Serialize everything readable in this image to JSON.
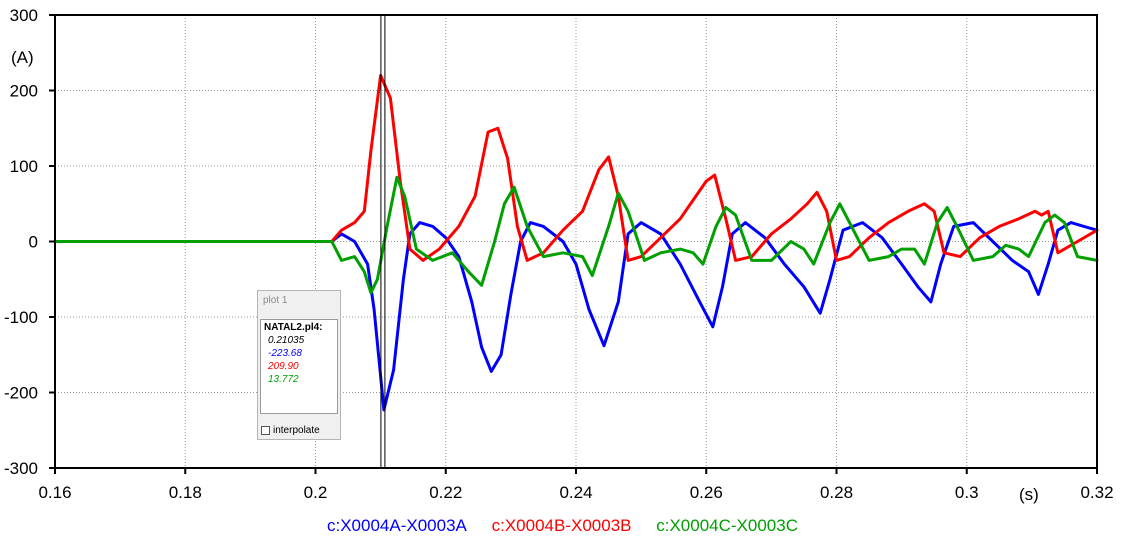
{
  "chart_data": {
    "type": "line",
    "title": "",
    "xlabel": "(s)",
    "ylabel": "(A)",
    "xlim": [
      0.16,
      0.32
    ],
    "ylim": [
      -300,
      300
    ],
    "xticks": [
      0.16,
      0.18,
      0.2,
      0.22,
      0.24,
      0.26,
      0.28,
      0.3,
      0.32
    ],
    "xtick_labels": [
      "0.16",
      "0.18",
      "0.2",
      "0.22",
      "0.24",
      "0.26",
      "0.28",
      "0.3",
      "0.32"
    ],
    "yticks": [
      300,
      200,
      100,
      0,
      -100,
      -200,
      -300
    ],
    "ytick_labels": [
      "300",
      "200",
      "100",
      "0",
      "-100",
      "-200",
      "-300"
    ],
    "grid": true,
    "legend_position": "bottom",
    "cursor_x": 0.21035,
    "series": [
      {
        "name": "c:X0004A-X0003A",
        "color": "#0000ff",
        "x": [
          0.16,
          0.2025,
          0.204,
          0.206,
          0.208,
          0.209,
          0.2105,
          0.212,
          0.2135,
          0.2145,
          0.216,
          0.218,
          0.22,
          0.222,
          0.224,
          0.2255,
          0.227,
          0.2285,
          0.23,
          0.2315,
          0.233,
          0.235,
          0.238,
          0.24,
          0.242,
          0.2443,
          0.2465,
          0.248,
          0.25,
          0.253,
          0.256,
          0.259,
          0.261,
          0.2625,
          0.264,
          0.266,
          0.269,
          0.272,
          0.275,
          0.2775,
          0.279,
          0.281,
          0.284,
          0.287,
          0.29,
          0.2925,
          0.2945,
          0.296,
          0.298,
          0.301,
          0.304,
          0.307,
          0.3095,
          0.311,
          0.3125,
          0.314,
          0.316,
          0.318,
          0.32
        ],
        "y": [
          0,
          0,
          10,
          0,
          -30,
          -90,
          -223,
          -170,
          -50,
          10,
          25,
          20,
          5,
          -20,
          -80,
          -140,
          -172,
          -150,
          -70,
          0,
          25,
          20,
          0,
          -30,
          -90,
          -138,
          -80,
          10,
          25,
          10,
          -30,
          -80,
          -113,
          -60,
          10,
          25,
          5,
          -30,
          -60,
          -95,
          -50,
          15,
          25,
          5,
          -30,
          -60,
          -80,
          -30,
          20,
          25,
          0,
          -25,
          -40,
          -70,
          -30,
          15,
          25,
          20,
          15
        ]
      },
      {
        "name": "c:X0004B-X0003B",
        "color": "#ff0000",
        "x": [
          0.16,
          0.2025,
          0.204,
          0.206,
          0.2075,
          0.2085,
          0.21,
          0.2115,
          0.213,
          0.2145,
          0.2165,
          0.219,
          0.222,
          0.2245,
          0.2265,
          0.228,
          0.2295,
          0.231,
          0.2325,
          0.235,
          0.238,
          0.241,
          0.2435,
          0.245,
          0.2465,
          0.248,
          0.25,
          0.253,
          0.256,
          0.258,
          0.26,
          0.2613,
          0.263,
          0.2645,
          0.267,
          0.27,
          0.273,
          0.2755,
          0.277,
          0.2785,
          0.28,
          0.282,
          0.285,
          0.288,
          0.291,
          0.2935,
          0.295,
          0.2965,
          0.299,
          0.302,
          0.305,
          0.308,
          0.3105,
          0.3115,
          0.3125,
          0.314,
          0.317,
          0.32
        ],
        "y": [
          0,
          0,
          15,
          25,
          40,
          120,
          220,
          190,
          80,
          -10,
          -25,
          -10,
          20,
          60,
          145,
          150,
          110,
          20,
          -25,
          -15,
          15,
          40,
          95,
          112,
          60,
          -25,
          -20,
          5,
          30,
          55,
          80,
          88,
          30,
          -25,
          -20,
          10,
          30,
          50,
          65,
          40,
          -25,
          -20,
          5,
          25,
          40,
          50,
          40,
          -15,
          -20,
          5,
          20,
          30,
          40,
          35,
          40,
          -15,
          0,
          15
        ]
      },
      {
        "name": "c:X0004C-X0003C",
        "color": "#00a000",
        "x": [
          0.16,
          0.2025,
          0.204,
          0.206,
          0.2075,
          0.2085,
          0.2095,
          0.211,
          0.2125,
          0.2137,
          0.2155,
          0.218,
          0.221,
          0.2235,
          0.2255,
          0.2275,
          0.229,
          0.2305,
          0.2325,
          0.235,
          0.238,
          0.241,
          0.2425,
          0.245,
          0.2465,
          0.248,
          0.2505,
          0.253,
          0.256,
          0.258,
          0.2595,
          0.2615,
          0.263,
          0.2645,
          0.267,
          0.27,
          0.273,
          0.275,
          0.2765,
          0.279,
          0.2805,
          0.282,
          0.285,
          0.288,
          0.29,
          0.292,
          0.2935,
          0.2955,
          0.297,
          0.2985,
          0.301,
          0.304,
          0.306,
          0.308,
          0.3095,
          0.312,
          0.3135,
          0.315,
          0.317,
          0.32
        ],
        "y": [
          0,
          0,
          -25,
          -20,
          -40,
          -68,
          -50,
          20,
          85,
          60,
          -10,
          -25,
          -15,
          -40,
          -58,
          0,
          50,
          72,
          20,
          -20,
          -15,
          -20,
          -45,
          20,
          64,
          40,
          -25,
          -15,
          -10,
          -15,
          -30,
          20,
          45,
          35,
          -25,
          -25,
          0,
          -10,
          -30,
          25,
          50,
          25,
          -25,
          -20,
          -10,
          -10,
          -30,
          25,
          45,
          20,
          -25,
          -20,
          -5,
          -10,
          -20,
          25,
          35,
          25,
          -20,
          -25
        ]
      }
    ]
  },
  "cursor_box": {
    "title": "plot 1",
    "file": "NATAL2.pl4:",
    "values": [
      {
        "text": "0.21035",
        "color": "#000000"
      },
      {
        "text": "-223.68",
        "color": "#0000ff"
      },
      {
        "text": "209.90",
        "color": "#ff0000"
      },
      {
        "text": "13.772",
        "color": "#00a000"
      }
    ],
    "interpolate_label": "interpolate"
  }
}
